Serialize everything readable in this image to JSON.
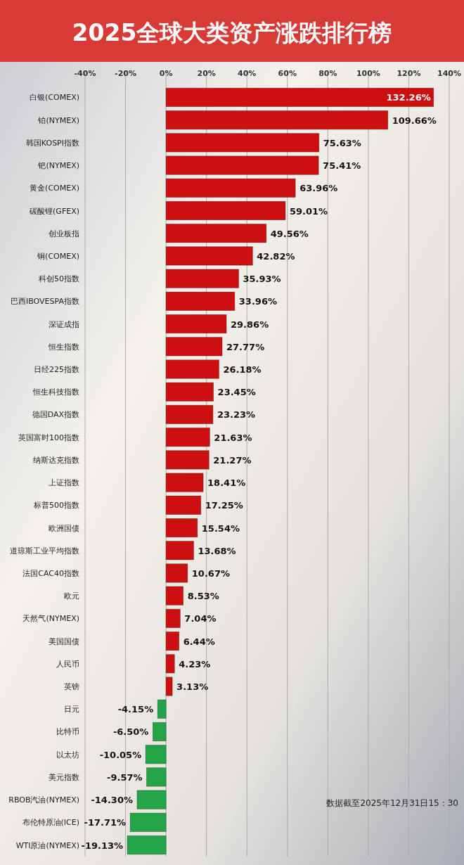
{
  "chart_data": {
    "type": "bar",
    "orientation": "horizontal",
    "title": "2025全球大类资产涨跌排行榜",
    "categories": [
      "白银(COMEX)",
      "铂(NYMEX)",
      "韩国KOSPI指数",
      "钯(NYMEX)",
      "黄金(COMEX)",
      "碳酸锂(GFEX)",
      "创业板指",
      "铜(COMEX)",
      "科创50指数",
      "巴西IBOVESPA指数",
      "深证成指",
      "恒生指数",
      "日经225指数",
      "恒生科技指数",
      "德国DAX指数",
      "英国富时100指数",
      "纳斯达克指数",
      "上证指数",
      "标普500指数",
      "欧洲国债",
      "道琼斯工业平均指数",
      "法国CAC40指数",
      "欧元",
      "天然气(NYMEX)",
      "美国国债",
      "人民币",
      "英镑",
      "日元",
      "比特币",
      "以太坊",
      "美元指数",
      "RBOB汽油(NYMEX)",
      "布伦特原油(ICE)",
      "WTI原油(NYMEX)"
    ],
    "values": [
      132.26,
      109.66,
      75.63,
      75.41,
      63.96,
      59.01,
      49.56,
      42.82,
      35.93,
      33.96,
      29.86,
      27.77,
      26.18,
      23.45,
      23.23,
      21.63,
      21.27,
      18.41,
      17.25,
      15.54,
      13.68,
      10.67,
      8.53,
      7.04,
      6.44,
      4.23,
      3.13,
      -4.15,
      -6.5,
      -10.05,
      -9.57,
      -14.3,
      -17.71,
      -19.13
    ],
    "colors": [
      "#cc1010",
      "#cc1010",
      "#cc1010",
      "#cc1010",
      "#cc1010",
      "#cc1010",
      "#cc1010",
      "#cc1010",
      "#cc1010",
      "#cc1010",
      "#cc1010",
      "#cc1010",
      "#cc1010",
      "#cc1010",
      "#cc1010",
      "#cc1010",
      "#cc1010",
      "#cc1010",
      "#cc1010",
      "#cc1010",
      "#cc1010",
      "#cc1010",
      "#cc1010",
      "#cc1010",
      "#cc1010",
      "#cc1010",
      "#cc1010",
      "#22a447",
      "#22a447",
      "#22a447",
      "#22a447",
      "#22a447",
      "#22a447",
      "#22a447"
    ],
    "value_labels": [
      "132.26%",
      "109.66%",
      "75.63%",
      "75.41%",
      "63.96%",
      "59.01%",
      "49.56%",
      "42.82%",
      "35.93%",
      "33.96%",
      "29.86%",
      "27.77%",
      "26.18%",
      "23.45%",
      "23.23%",
      "21.63%",
      "21.27%",
      "18.41%",
      "17.25%",
      "15.54%",
      "13.68%",
      "10.67%",
      "8.53%",
      "7.04%",
      "6.44%",
      "4.23%",
      "3.13%",
      "-4.15%",
      "-6.50%",
      "-10.05%",
      "-9.57%",
      "-14.30%",
      "-17.71%",
      "-19.13%"
    ],
    "xlim": [
      -40,
      140
    ],
    "xticks": [
      {
        "value": -40,
        "label": "-40%"
      },
      {
        "value": -20,
        "label": "-20%"
      },
      {
        "value": 0,
        "label": "0%"
      },
      {
        "value": 20,
        "label": "20%"
      },
      {
        "value": 40,
        "label": "40%"
      },
      {
        "value": 60,
        "label": "60%"
      },
      {
        "value": 80,
        "label": "80%"
      },
      {
        "value": 100,
        "label": "100%"
      },
      {
        "value": 120,
        "label": "120%"
      },
      {
        "value": 140,
        "label": "140%"
      }
    ],
    "grid": "x",
    "annotations": [
      "数据截至2025年12月31日15：30"
    ]
  }
}
